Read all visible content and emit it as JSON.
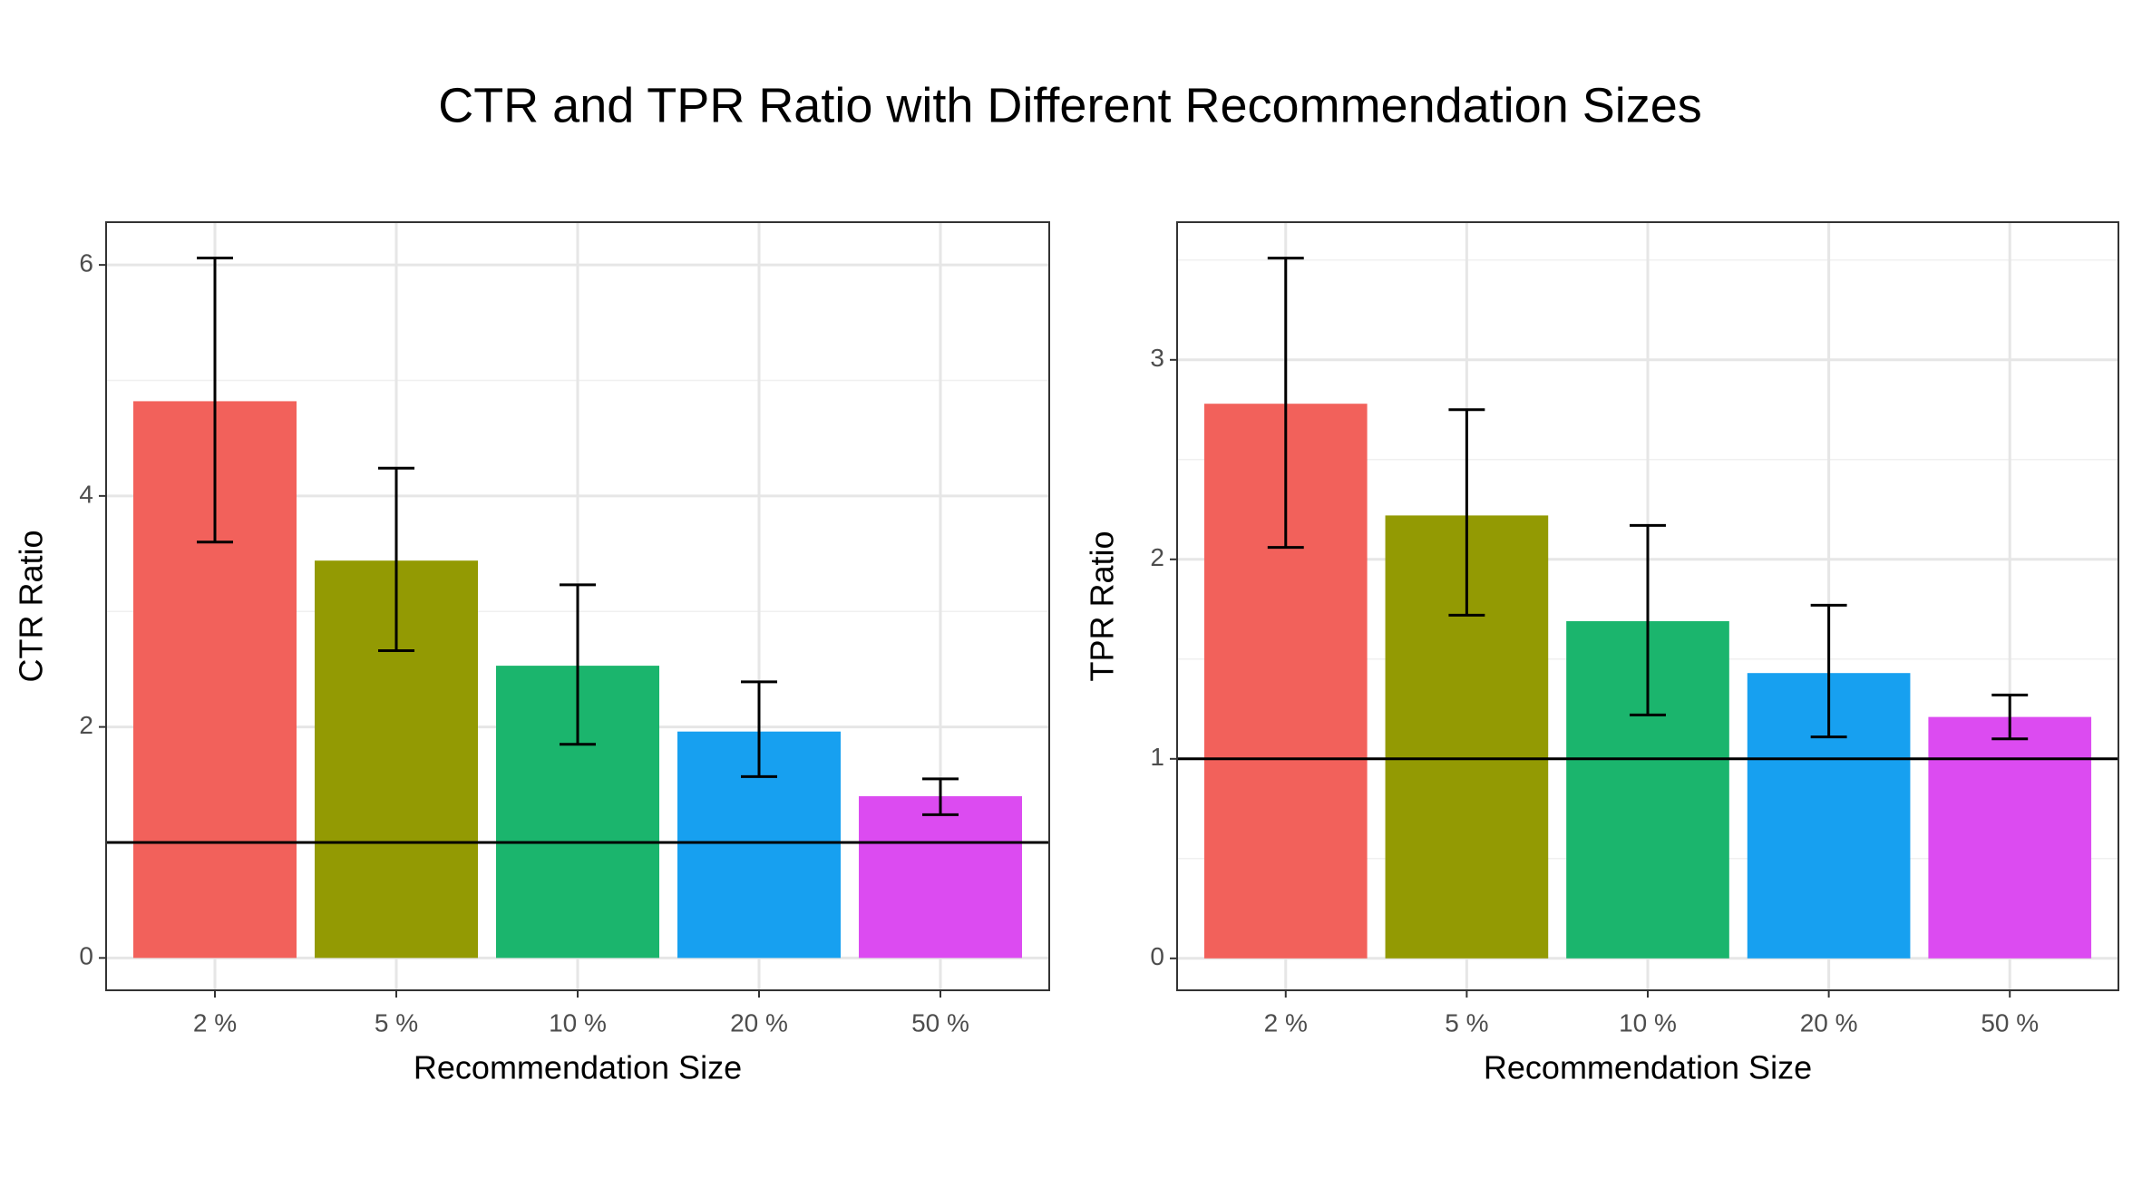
{
  "title": "CTR and TPR Ratio with Different Recommendation Sizes",
  "chart_data": [
    {
      "type": "bar",
      "xlabel": "Recommendation Size",
      "ylabel": "CTR Ratio",
      "categories": [
        "2 %",
        "5 %",
        "10 %",
        "20 %",
        "50 %"
      ],
      "values": [
        4.82,
        3.44,
        2.53,
        1.96,
        1.4
      ],
      "lower": [
        3.6,
        2.66,
        1.85,
        1.57,
        1.24
      ],
      "upper": [
        6.06,
        4.24,
        3.23,
        2.39,
        1.55
      ],
      "colors": [
        "#F2615B",
        "#939A03",
        "#1BB56D",
        "#17A0F0",
        "#DC4BF1"
      ],
      "hline": 1,
      "ylim": [
        -0.28,
        6.37
      ],
      "yticks": [
        0,
        2,
        4,
        6
      ],
      "minor_yticks": [
        1,
        3,
        5
      ],
      "grid": true
    },
    {
      "type": "bar",
      "xlabel": "Recommendation Size",
      "ylabel": "TPR Ratio",
      "categories": [
        "2 %",
        "5 %",
        "10 %",
        "20 %",
        "50 %"
      ],
      "values": [
        2.78,
        2.22,
        1.69,
        1.43,
        1.21
      ],
      "lower": [
        2.06,
        1.72,
        1.22,
        1.11,
        1.1
      ],
      "upper": [
        3.51,
        2.75,
        2.17,
        1.77,
        1.32
      ],
      "colors": [
        "#F2615B",
        "#939A03",
        "#1BB56D",
        "#17A0F0",
        "#DC4BF1"
      ],
      "hline": 1,
      "ylim": [
        -0.16,
        3.69
      ],
      "yticks": [
        0,
        1,
        2,
        3
      ],
      "minor_yticks": [
        0.5,
        1.5,
        2.5,
        3.5
      ],
      "grid": true
    }
  ]
}
